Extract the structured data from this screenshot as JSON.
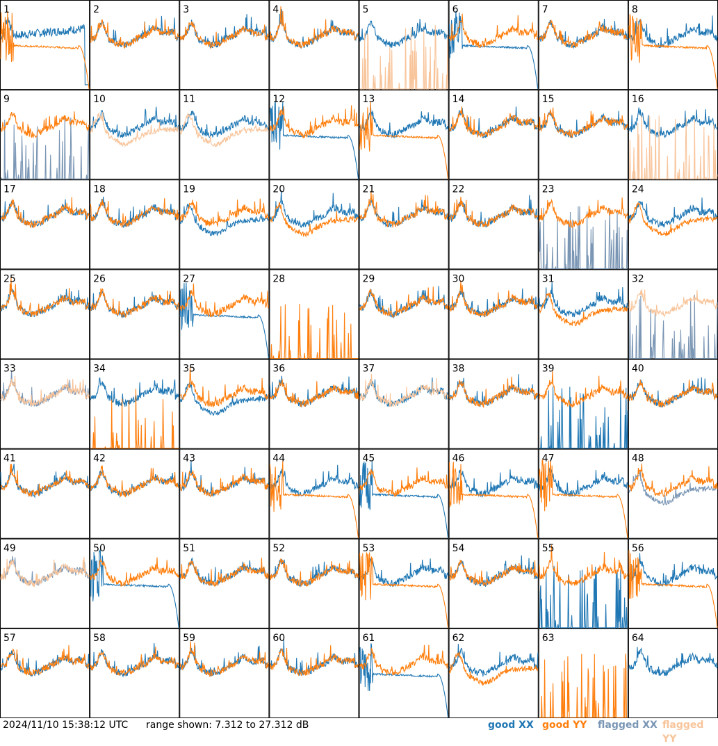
{
  "footer": {
    "timestamp": "2024/11/10 15:38:12 UTC",
    "range_text": "range shown: 7.312 to 27.312 dB"
  },
  "colors": {
    "good_xx": "#1f77b4",
    "good_yy": "#ff7f0e",
    "flagged_xx": "#7a96b4",
    "flagged_yy": "#f8c49a",
    "grid": "#000000"
  },
  "chart_data": {
    "type": "line",
    "title": "",
    "xlabel": "",
    "ylabel": "",
    "ylim": [
      7.312,
      27.312
    ],
    "unit": "dB",
    "legend_placement": "bottom-right",
    "legend": [
      "good XX",
      "good YY",
      "flagged XX",
      "flagged YY"
    ],
    "layout": {
      "rows": 8,
      "cols": 8
    },
    "panels": [
      {
        "id": "1",
        "xx": "weird",
        "yy": "decay",
        "flag_xx": false,
        "flag_yy": false
      },
      {
        "id": "2",
        "xx": "normal",
        "yy": "normal",
        "flag_xx": false,
        "flag_yy": false
      },
      {
        "id": "3",
        "xx": "normal",
        "yy": "normal",
        "flag_xx": false,
        "flag_yy": false
      },
      {
        "id": "4",
        "xx": "normal",
        "yy": "normal",
        "flag_xx": false,
        "flag_yy": false
      },
      {
        "id": "5",
        "xx": "normal",
        "yy": "spikes",
        "flag_xx": false,
        "flag_yy": true
      },
      {
        "id": "6",
        "xx": "decay",
        "yy": "normal",
        "flag_xx": false,
        "flag_yy": false
      },
      {
        "id": "7",
        "xx": "normal",
        "yy": "normal",
        "flag_xx": false,
        "flag_yy": false
      },
      {
        "id": "8",
        "xx": "normal",
        "yy": "decay",
        "flag_xx": false,
        "flag_yy": false
      },
      {
        "id": "9",
        "xx": "spikes",
        "yy": "normal",
        "flag_xx": true,
        "flag_yy": false
      },
      {
        "id": "10",
        "xx": "normal",
        "yy": "low",
        "flag_xx": false,
        "flag_yy": true
      },
      {
        "id": "11",
        "xx": "normal",
        "yy": "low",
        "flag_xx": false,
        "flag_yy": true
      },
      {
        "id": "12",
        "xx": "decay",
        "yy": "normal",
        "flag_xx": false,
        "flag_yy": false
      },
      {
        "id": "13",
        "xx": "normal",
        "yy": "decay",
        "flag_xx": false,
        "flag_yy": false
      },
      {
        "id": "14",
        "xx": "normal",
        "yy": "normal",
        "flag_xx": false,
        "flag_yy": false
      },
      {
        "id": "15",
        "xx": "normal",
        "yy": "normal",
        "flag_xx": false,
        "flag_yy": false
      },
      {
        "id": "16",
        "xx": "normal",
        "yy": "spikes",
        "flag_xx": false,
        "flag_yy": true
      },
      {
        "id": "17",
        "xx": "normal",
        "yy": "normal",
        "flag_xx": false,
        "flag_yy": false
      },
      {
        "id": "18",
        "xx": "normal",
        "yy": "normal",
        "flag_xx": false,
        "flag_yy": false
      },
      {
        "id": "19",
        "xx": "low",
        "yy": "normal",
        "flag_xx": false,
        "flag_yy": false
      },
      {
        "id": "20",
        "xx": "normal",
        "yy": "low",
        "flag_xx": false,
        "flag_yy": false
      },
      {
        "id": "21",
        "xx": "normal",
        "yy": "normal",
        "flag_xx": false,
        "flag_yy": false
      },
      {
        "id": "22",
        "xx": "normal",
        "yy": "normal",
        "flag_xx": false,
        "flag_yy": false
      },
      {
        "id": "23",
        "xx": "spikes",
        "yy": "normal",
        "flag_xx": true,
        "flag_yy": false
      },
      {
        "id": "24",
        "xx": "normal",
        "yy": "low",
        "flag_xx": false,
        "flag_yy": false
      },
      {
        "id": "25",
        "xx": "normal",
        "yy": "normal",
        "flag_xx": false,
        "flag_yy": false
      },
      {
        "id": "26",
        "xx": "normal",
        "yy": "normal",
        "flag_xx": false,
        "flag_yy": false
      },
      {
        "id": "27",
        "xx": "decay",
        "yy": "normal",
        "flag_xx": false,
        "flag_yy": false
      },
      {
        "id": "28",
        "xx": "none",
        "yy": "spikes",
        "flag_xx": false,
        "flag_yy": false
      },
      {
        "id": "29",
        "xx": "normal",
        "yy": "normal",
        "flag_xx": false,
        "flag_yy": false
      },
      {
        "id": "30",
        "xx": "normal",
        "yy": "normal",
        "flag_xx": false,
        "flag_yy": false
      },
      {
        "id": "31",
        "xx": "normal",
        "yy": "low",
        "flag_xx": false,
        "flag_yy": false
      },
      {
        "id": "32",
        "xx": "spikes",
        "yy": "normal",
        "flag_xx": true,
        "flag_yy": true
      },
      {
        "id": "33",
        "xx": "normal",
        "yy": "normal",
        "flag_xx": true,
        "flag_yy": true
      },
      {
        "id": "34",
        "xx": "normal",
        "yy": "spikes",
        "flag_xx": false,
        "flag_yy": false
      },
      {
        "id": "35",
        "xx": "low",
        "yy": "normal",
        "flag_xx": false,
        "flag_yy": false
      },
      {
        "id": "36",
        "xx": "normal",
        "yy": "normal",
        "flag_xx": false,
        "flag_yy": false
      },
      {
        "id": "37",
        "xx": "normal",
        "yy": "normal",
        "flag_xx": false,
        "flag_yy": true
      },
      {
        "id": "38",
        "xx": "normal",
        "yy": "normal",
        "flag_xx": false,
        "flag_yy": false
      },
      {
        "id": "39",
        "xx": "spikes",
        "yy": "normal",
        "flag_xx": false,
        "flag_yy": false
      },
      {
        "id": "40",
        "xx": "normal",
        "yy": "normal",
        "flag_xx": false,
        "flag_yy": false
      },
      {
        "id": "41",
        "xx": "normal",
        "yy": "normal",
        "flag_xx": false,
        "flag_yy": false
      },
      {
        "id": "42",
        "xx": "normal",
        "yy": "normal",
        "flag_xx": false,
        "flag_yy": false
      },
      {
        "id": "43",
        "xx": "normal",
        "yy": "normal",
        "flag_xx": false,
        "flag_yy": false
      },
      {
        "id": "44",
        "xx": "normal",
        "yy": "decay",
        "flag_xx": false,
        "flag_yy": false
      },
      {
        "id": "45",
        "xx": "decay",
        "yy": "normal",
        "flag_xx": false,
        "flag_yy": false
      },
      {
        "id": "46",
        "xx": "normal",
        "yy": "decay",
        "flag_xx": false,
        "flag_yy": false
      },
      {
        "id": "47",
        "xx": "normal",
        "yy": "decay",
        "flag_xx": false,
        "flag_yy": false
      },
      {
        "id": "48",
        "xx": "low",
        "yy": "normal",
        "flag_xx": true,
        "flag_yy": false
      },
      {
        "id": "49",
        "xx": "normal",
        "yy": "normal",
        "flag_xx": true,
        "flag_yy": true
      },
      {
        "id": "50",
        "xx": "decay",
        "yy": "normal",
        "flag_xx": false,
        "flag_yy": false
      },
      {
        "id": "51",
        "xx": "normal",
        "yy": "normal",
        "flag_xx": false,
        "flag_yy": false
      },
      {
        "id": "52",
        "xx": "normal",
        "yy": "normal",
        "flag_xx": false,
        "flag_yy": false
      },
      {
        "id": "53",
        "xx": "normal",
        "yy": "decay",
        "flag_xx": false,
        "flag_yy": false
      },
      {
        "id": "54",
        "xx": "normal",
        "yy": "normal",
        "flag_xx": false,
        "flag_yy": false
      },
      {
        "id": "55",
        "xx": "spikes",
        "yy": "normal",
        "flag_xx": false,
        "flag_yy": false
      },
      {
        "id": "56",
        "xx": "normal",
        "yy": "decay",
        "flag_xx": false,
        "flag_yy": false
      },
      {
        "id": "57",
        "xx": "normal",
        "yy": "normal",
        "flag_xx": false,
        "flag_yy": false
      },
      {
        "id": "58",
        "xx": "normal",
        "yy": "normal",
        "flag_xx": false,
        "flag_yy": false
      },
      {
        "id": "59",
        "xx": "normal",
        "yy": "normal",
        "flag_xx": false,
        "flag_yy": false
      },
      {
        "id": "60",
        "xx": "normal",
        "yy": "normal",
        "flag_xx": false,
        "flag_yy": false
      },
      {
        "id": "61",
        "xx": "decay",
        "yy": "normal",
        "flag_xx": false,
        "flag_yy": false
      },
      {
        "id": "62",
        "xx": "normal",
        "yy": "low",
        "flag_xx": false,
        "flag_yy": false
      },
      {
        "id": "63",
        "xx": "none",
        "yy": "spikes",
        "flag_xx": false,
        "flag_yy": false
      },
      {
        "id": "64",
        "xx": "normal",
        "yy": "none",
        "flag_xx": false,
        "flag_yy": true
      }
    ]
  },
  "legend": {
    "good_xx": "good XX",
    "good_yy": "good YY",
    "flagged_xx": "flagged XX",
    "flagged_yy": "flagged YY"
  }
}
